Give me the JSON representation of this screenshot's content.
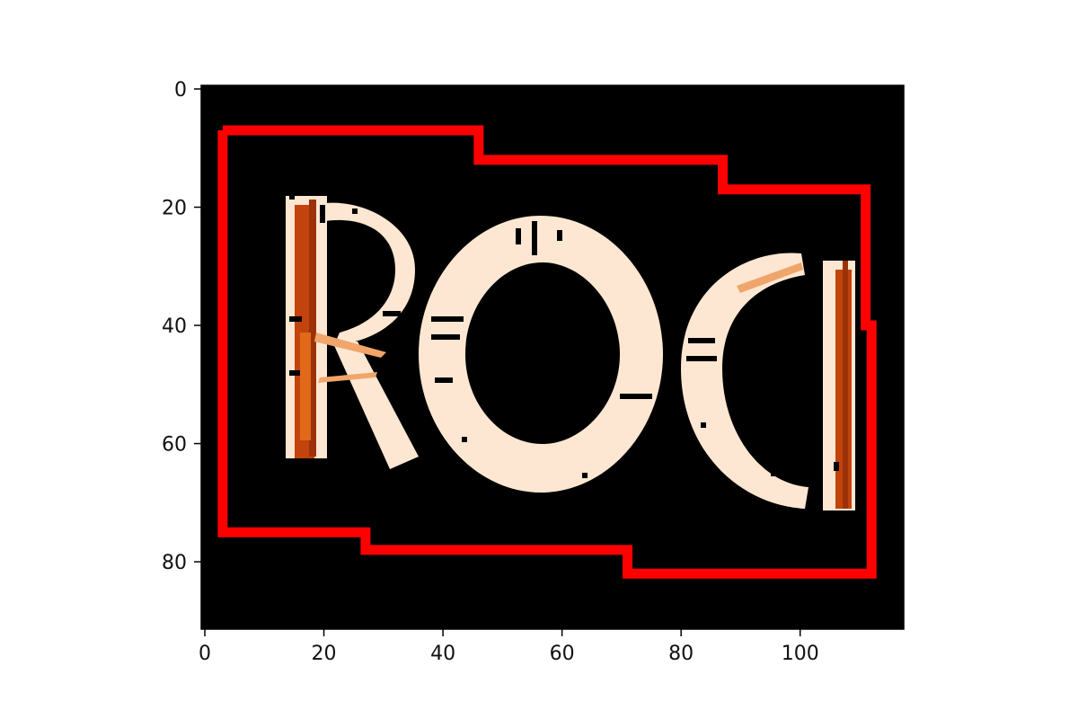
{
  "chart_data": {
    "type": "heatmap",
    "title": "",
    "xlabel": "",
    "ylabel": "",
    "xlim": [
      0,
      118
    ],
    "ylim": [
      92,
      0
    ],
    "x_ticks": [
      "0",
      "20",
      "40",
      "60",
      "80",
      "100"
    ],
    "y_ticks": [
      "0",
      "20",
      "40",
      "60",
      "80"
    ],
    "x_tick_values": [
      0,
      20,
      40,
      60,
      80,
      100
    ],
    "y_tick_values": [
      0,
      20,
      40,
      60,
      80
    ],
    "colors": {
      "background": "#000000",
      "glyph": "#fde7d2",
      "highlight": "#c2430c",
      "outline": "#ff0000"
    },
    "glyphs": [
      "R",
      "O",
      "C",
      "K"
    ],
    "region_outline": [
      [
        3,
        7
      ],
      [
        46,
        7
      ],
      [
        46,
        12
      ],
      [
        87,
        12
      ],
      [
        87,
        17
      ],
      [
        111,
        17
      ],
      [
        111,
        40
      ],
      [
        112,
        40
      ],
      [
        112,
        82
      ],
      [
        71,
        82
      ],
      [
        71,
        78
      ],
      [
        27,
        78
      ],
      [
        27,
        75
      ],
      [
        3,
        75
      ]
    ]
  }
}
